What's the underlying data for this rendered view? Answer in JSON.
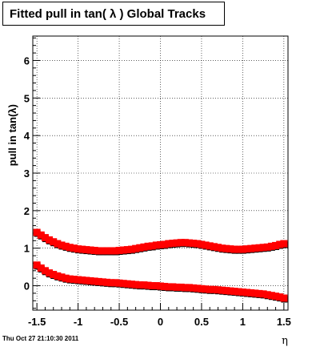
{
  "chart_data": {
    "type": "scatter",
    "title": "Fitted pull in tan( λ )  Global Tracks",
    "xlabel": "η",
    "ylabel": "pull in tan(λ)",
    "xlim": [
      -1.55,
      1.55
    ],
    "ylim": [
      -0.65,
      6.65
    ],
    "x_ticks": [
      -1.5,
      -1,
      -0.5,
      0,
      0.5,
      1,
      1.5
    ],
    "x_tick_labels": [
      "-1.5",
      "-1",
      "-0.5",
      "0",
      "0.5",
      "1",
      "1.5"
    ],
    "y_ticks": [
      0,
      1,
      2,
      3,
      4,
      5,
      6
    ],
    "y_tick_labels": [
      "0",
      "1",
      "2",
      "3",
      "4",
      "5",
      "6"
    ],
    "grid": true,
    "marker_color": "#ff0000",
    "shadow_color": "#000000",
    "series": [
      {
        "x": [
          -1.5,
          -1.45,
          -1.4,
          -1.35,
          -1.3,
          -1.25,
          -1.2,
          -1.15,
          -1.1,
          -1.05,
          -1.0,
          -0.95,
          -0.9,
          -0.85,
          -0.8,
          -0.75,
          -0.7,
          -0.65,
          -0.6,
          -0.55,
          -0.5,
          -0.45,
          -0.4,
          -0.35,
          -0.3,
          -0.25,
          -0.2,
          -0.15,
          -0.1,
          -0.05,
          0.0,
          0.05,
          0.1,
          0.15,
          0.2,
          0.25,
          0.3,
          0.35,
          0.4,
          0.45,
          0.5,
          0.55,
          0.6,
          0.65,
          0.7,
          0.75,
          0.8,
          0.85,
          0.9,
          0.95,
          1.0,
          1.05,
          1.1,
          1.15,
          1.2,
          1.25,
          1.3,
          1.35,
          1.4,
          1.45,
          1.5
        ],
        "values": [
          1.42,
          1.35,
          1.28,
          1.22,
          1.17,
          1.12,
          1.08,
          1.05,
          1.02,
          1.0,
          0.98,
          0.97,
          0.96,
          0.95,
          0.94,
          0.93,
          0.93,
          0.93,
          0.93,
          0.93,
          0.94,
          0.95,
          0.96,
          0.97,
          0.99,
          1.01,
          1.03,
          1.05,
          1.06,
          1.08,
          1.09,
          1.1,
          1.12,
          1.13,
          1.14,
          1.15,
          1.15,
          1.14,
          1.13,
          1.12,
          1.1,
          1.08,
          1.06,
          1.04,
          1.02,
          1.0,
          0.99,
          0.98,
          0.97,
          0.97,
          0.97,
          0.98,
          0.99,
          1.0,
          1.01,
          1.02,
          1.03,
          1.05,
          1.07,
          1.1,
          1.12
        ]
      },
      {
        "x": [
          -1.5,
          -1.45,
          -1.4,
          -1.35,
          -1.3,
          -1.25,
          -1.2,
          -1.15,
          -1.1,
          -1.05,
          -1.0,
          -0.95,
          -0.9,
          -0.85,
          -0.8,
          -0.75,
          -0.7,
          -0.65,
          -0.6,
          -0.55,
          -0.5,
          -0.45,
          -0.4,
          -0.35,
          -0.3,
          -0.25,
          -0.2,
          -0.15,
          -0.1,
          -0.05,
          0.0,
          0.05,
          0.1,
          0.15,
          0.2,
          0.25,
          0.3,
          0.35,
          0.4,
          0.45,
          0.5,
          0.55,
          0.6,
          0.65,
          0.7,
          0.75,
          0.8,
          0.85,
          0.9,
          0.95,
          1.0,
          1.05,
          1.1,
          1.15,
          1.2,
          1.25,
          1.3,
          1.35,
          1.4,
          1.45,
          1.5
        ],
        "values": [
          0.55,
          0.47,
          0.4,
          0.34,
          0.3,
          0.26,
          0.23,
          0.2,
          0.18,
          0.17,
          0.16,
          0.15,
          0.14,
          0.13,
          0.12,
          0.11,
          0.1,
          0.09,
          0.08,
          0.08,
          0.07,
          0.06,
          0.05,
          0.04,
          0.03,
          0.02,
          0.02,
          0.01,
          0.0,
          0.0,
          -0.01,
          -0.02,
          -0.03,
          -0.03,
          -0.04,
          -0.04,
          -0.05,
          -0.05,
          -0.06,
          -0.07,
          -0.08,
          -0.09,
          -0.1,
          -0.1,
          -0.11,
          -0.12,
          -0.13,
          -0.14,
          -0.15,
          -0.16,
          -0.17,
          -0.18,
          -0.19,
          -0.2,
          -0.21,
          -0.22,
          -0.24,
          -0.26,
          -0.28,
          -0.3,
          -0.33
        ]
      }
    ]
  },
  "timestamp": "Thu Oct 27 21:10:30 2011"
}
